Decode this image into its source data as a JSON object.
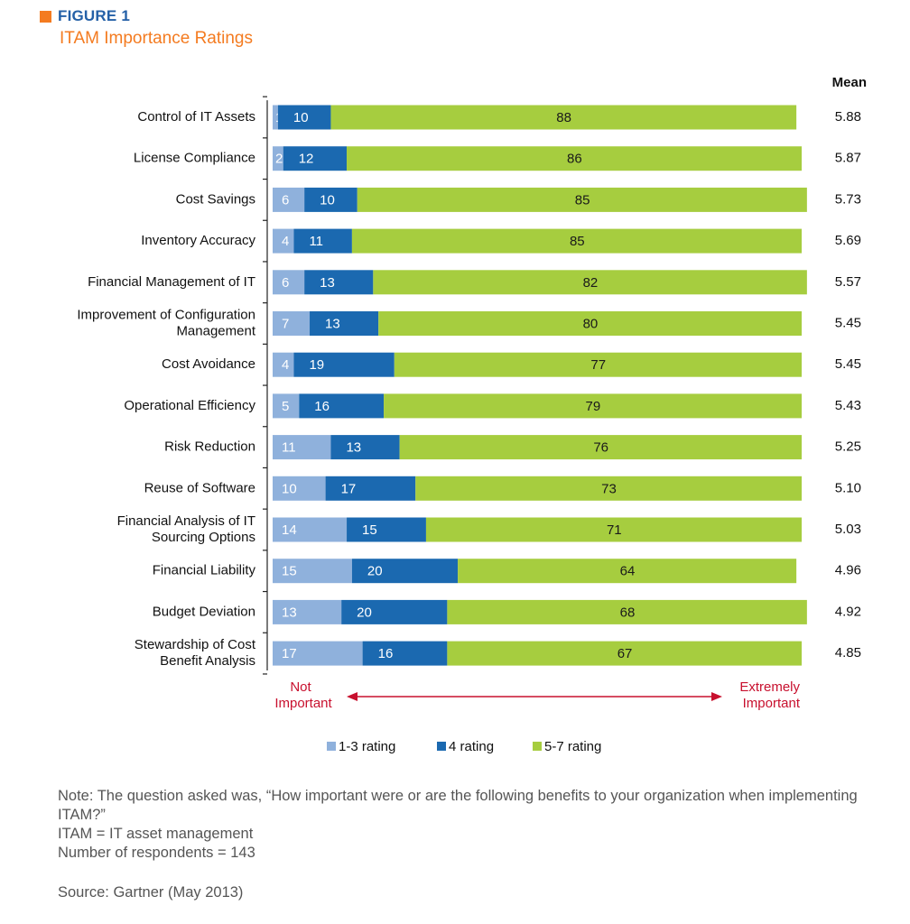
{
  "figure": {
    "label": "FIGURE 1",
    "title": "ITAM Importance Ratings",
    "colors": {
      "square": "#f47b20",
      "label": "#2460a7",
      "title": "#f47b20"
    }
  },
  "chart_data": {
    "type": "bar",
    "orientation": "horizontal",
    "stacked": true,
    "title": "ITAM Importance Ratings",
    "xlim": [
      0,
      100
    ],
    "categories": [
      "Control of IT Assets",
      "License Compliance",
      "Cost Savings",
      "Inventory Accuracy",
      "Financial Management of IT",
      "Improvement of Configuration Management",
      "Cost Avoidance",
      "Operational Efficiency",
      "Risk Reduction",
      "Reuse of Software",
      "Financial Analysis of IT Sourcing Options",
      "Financial Liability",
      "Budget Deviation",
      "Stewardship of Cost Benefit Analysis"
    ],
    "category_lines": [
      [
        "Control of IT Assets"
      ],
      [
        "License Compliance"
      ],
      [
        "Cost Savings"
      ],
      [
        "Inventory Accuracy"
      ],
      [
        "Financial Management of IT"
      ],
      [
        "Improvement of Configuration",
        "Management"
      ],
      [
        "Cost Avoidance"
      ],
      [
        "Operational Efficiency"
      ],
      [
        "Risk Reduction"
      ],
      [
        "Reuse of Software"
      ],
      [
        "Financial Analysis of IT",
        "Sourcing Options"
      ],
      [
        "Financial Liability"
      ],
      [
        "Budget Deviation"
      ],
      [
        "Stewardship of Cost",
        "Benefit Analysis"
      ]
    ],
    "series": [
      {
        "name": "1-3 rating",
        "color": "#8fb1dc",
        "values": [
          1,
          2,
          6,
          4,
          6,
          7,
          4,
          5,
          11,
          10,
          14,
          15,
          13,
          17
        ]
      },
      {
        "name": "4 rating",
        "color": "#1b69b0",
        "values": [
          10,
          12,
          10,
          11,
          13,
          13,
          19,
          16,
          13,
          17,
          15,
          20,
          20,
          16
        ]
      },
      {
        "name": "5-7 rating",
        "color": "#a6cd3f",
        "values": [
          88,
          86,
          85,
          85,
          82,
          80,
          77,
          79,
          76,
          73,
          71,
          64,
          68,
          67
        ]
      }
    ],
    "mean_header": "Mean",
    "means": [
      "5.88",
      "5.87",
      "5.73",
      "5.69",
      "5.57",
      "5.45",
      "5.45",
      "5.43",
      "5.25",
      "5.10",
      "5.03",
      "4.96",
      "4.92",
      "4.85"
    ],
    "scale_left_lines": [
      "Not",
      "Important"
    ],
    "scale_right_lines": [
      "Extremely",
      "Important"
    ],
    "scale_color": "#c8102e",
    "legend_position": "bottom-center"
  },
  "notes": {
    "question": "Note: The question asked was, “How important were or are the following benefits to your organization when implementing ITAM?”",
    "abbreviation": "ITAM = IT asset management",
    "respondents": "Number of respondents = 143",
    "source": "Source: Gartner (May 2013)"
  }
}
